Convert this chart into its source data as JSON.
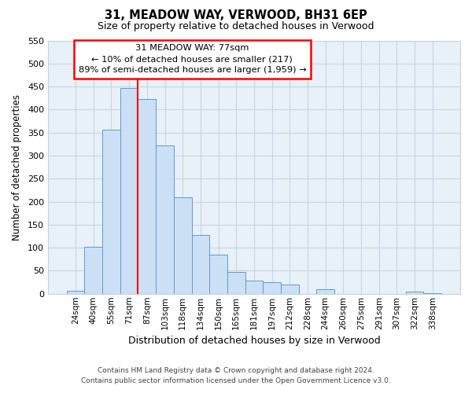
{
  "title": "31, MEADOW WAY, VERWOOD, BH31 6EP",
  "subtitle": "Size of property relative to detached houses in Verwood",
  "xlabel": "Distribution of detached houses by size in Verwood",
  "ylabel": "Number of detached properties",
  "bar_labels": [
    "24sqm",
    "40sqm",
    "55sqm",
    "71sqm",
    "87sqm",
    "103sqm",
    "118sqm",
    "134sqm",
    "150sqm",
    "165sqm",
    "181sqm",
    "197sqm",
    "212sqm",
    "228sqm",
    "244sqm",
    "260sqm",
    "275sqm",
    "291sqm",
    "307sqm",
    "322sqm",
    "338sqm"
  ],
  "bar_values": [
    7,
    102,
    356,
    447,
    422,
    323,
    210,
    128,
    85,
    48,
    29,
    25,
    20,
    0,
    10,
    0,
    0,
    0,
    0,
    4,
    2
  ],
  "bar_color": "#cce0f5",
  "bar_edge_color": "#5b9bd5",
  "ylim": [
    0,
    550
  ],
  "yticks": [
    0,
    50,
    100,
    150,
    200,
    250,
    300,
    350,
    400,
    450,
    500,
    550
  ],
  "annotation_title": "31 MEADOW WAY: 77sqm",
  "annotation_line1": "← 10% of detached houses are smaller (217)",
  "annotation_line2": "89% of semi-detached houses are larger (1,959) →",
  "footer_line1": "Contains HM Land Registry data © Crown copyright and database right 2024.",
  "footer_line2": "Contains public sector information licensed under the Open Government Licence v3.0.",
  "background_color": "#ffffff",
  "plot_bg_color": "#e8f0f8",
  "grid_color": "#c8d4e0"
}
